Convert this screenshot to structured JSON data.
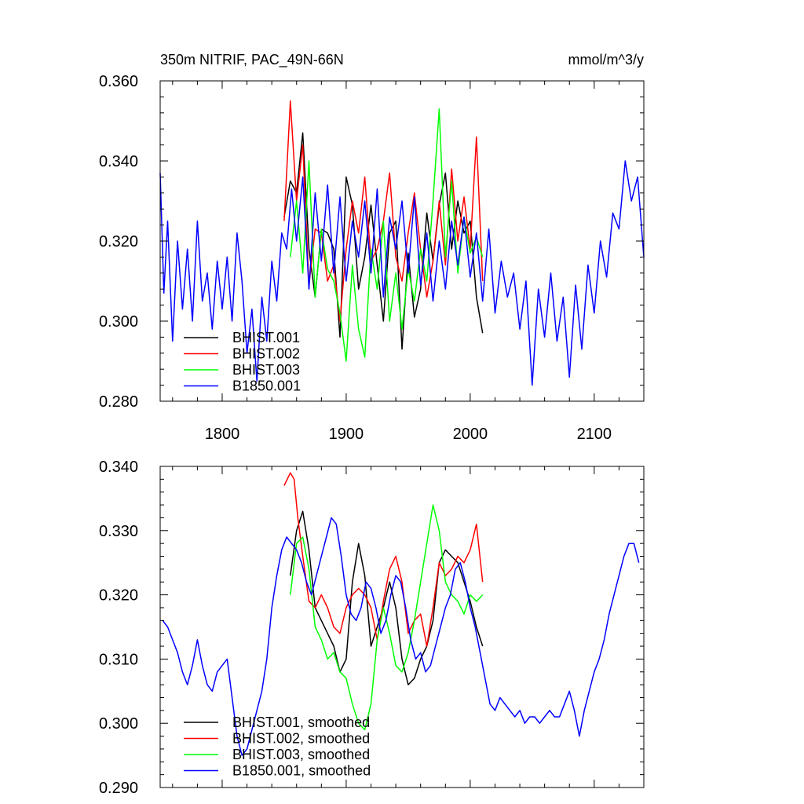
{
  "chart_data": [
    {
      "type": "line",
      "title_left": "350m NITRIF, PAC_49N-66N",
      "title_right": "mmol/m^3/y",
      "xlim": [
        1750,
        2140
      ],
      "ylim": [
        0.28,
        0.36
      ],
      "x_ticks": [
        1800,
        1900,
        2000,
        2100
      ],
      "x_tick_labels": [
        "1800",
        "1900",
        "2000",
        "2100"
      ],
      "y_ticks": [
        0.28,
        0.3,
        0.32,
        0.34,
        0.36
      ],
      "y_tick_labels": [
        "0.280",
        "0.300",
        "0.320",
        "0.340",
        "0.360"
      ],
      "legend_position": "bottom-left",
      "series": [
        {
          "name": "BHIST.001",
          "color": "#000000",
          "x": [
            1850,
            1855,
            1860,
            1865,
            1870,
            1875,
            1880,
            1885,
            1890,
            1895,
            1900,
            1905,
            1910,
            1915,
            1920,
            1925,
            1930,
            1935,
            1940,
            1945,
            1950,
            1955,
            1960,
            1965,
            1970,
            1975,
            1980,
            1985,
            1990,
            1995,
            2000,
            2005,
            2010
          ],
          "y": [
            0.326,
            0.335,
            0.332,
            0.347,
            0.318,
            0.306,
            0.323,
            0.322,
            0.318,
            0.296,
            0.336,
            0.329,
            0.308,
            0.316,
            0.329,
            0.314,
            0.3,
            0.322,
            0.325,
            0.293,
            0.317,
            0.301,
            0.308,
            0.327,
            0.315,
            0.329,
            0.337,
            0.318,
            0.33,
            0.322,
            0.325,
            0.306,
            0.297
          ]
        },
        {
          "name": "BHIST.002",
          "color": "#ff0000",
          "x": [
            1850,
            1855,
            1860,
            1865,
            1870,
            1875,
            1880,
            1885,
            1890,
            1895,
            1900,
            1905,
            1910,
            1915,
            1920,
            1925,
            1930,
            1935,
            1940,
            1945,
            1950,
            1955,
            1960,
            1965,
            1970,
            1975,
            1980,
            1985,
            1990,
            1995,
            2000,
            2005,
            2010
          ],
          "y": [
            0.325,
            0.355,
            0.33,
            0.344,
            0.309,
            0.323,
            0.322,
            0.31,
            0.314,
            0.3,
            0.318,
            0.33,
            0.322,
            0.336,
            0.315,
            0.318,
            0.325,
            0.337,
            0.316,
            0.31,
            0.322,
            0.332,
            0.318,
            0.306,
            0.315,
            0.33,
            0.314,
            0.338,
            0.32,
            0.331,
            0.318,
            0.346,
            0.31
          ]
        },
        {
          "name": "BHIST.003",
          "color": "#00ff00",
          "x": [
            1855,
            1860,
            1865,
            1870,
            1875,
            1880,
            1885,
            1890,
            1895,
            1900,
            1905,
            1910,
            1915,
            1920,
            1925,
            1930,
            1935,
            1940,
            1945,
            1950,
            1955,
            1960,
            1965,
            1970,
            1975,
            1980,
            1985,
            1990,
            1995,
            2000,
            2005,
            2010
          ],
          "y": [
            0.316,
            0.33,
            0.312,
            0.34,
            0.306,
            0.323,
            0.313,
            0.31,
            0.302,
            0.29,
            0.314,
            0.298,
            0.291,
            0.318,
            0.308,
            0.325,
            0.3,
            0.312,
            0.298,
            0.313,
            0.305,
            0.318,
            0.31,
            0.33,
            0.353,
            0.316,
            0.335,
            0.312,
            0.326,
            0.317,
            0.321,
            0.316
          ]
        },
        {
          "name": "B1850.001",
          "color": "#0000ff",
          "x": [
            1750,
            1753,
            1756,
            1760,
            1764,
            1768,
            1772,
            1776,
            1780,
            1784,
            1788,
            1792,
            1796,
            1800,
            1804,
            1808,
            1812,
            1816,
            1820,
            1824,
            1828,
            1832,
            1836,
            1840,
            1844,
            1848,
            1852,
            1856,
            1860,
            1865,
            1870,
            1875,
            1880,
            1885,
            1890,
            1895,
            1900,
            1905,
            1910,
            1915,
            1920,
            1925,
            1930,
            1935,
            1940,
            1945,
            1950,
            1955,
            1960,
            1965,
            1970,
            1975,
            1980,
            1985,
            1990,
            1995,
            2000,
            2005,
            2010,
            2015,
            2020,
            2025,
            2030,
            2035,
            2040,
            2045,
            2050,
            2055,
            2060,
            2065,
            2070,
            2075,
            2080,
            2085,
            2090,
            2095,
            2100,
            2105,
            2110,
            2115,
            2120,
            2125,
            2130,
            2135,
            2140
          ],
          "y": [
            0.337,
            0.307,
            0.325,
            0.295,
            0.32,
            0.303,
            0.318,
            0.3,
            0.325,
            0.305,
            0.312,
            0.298,
            0.315,
            0.303,
            0.316,
            0.3,
            0.322,
            0.31,
            0.292,
            0.303,
            0.285,
            0.306,
            0.295,
            0.315,
            0.305,
            0.322,
            0.318,
            0.333,
            0.32,
            0.336,
            0.308,
            0.332,
            0.315,
            0.334,
            0.312,
            0.331,
            0.31,
            0.325,
            0.316,
            0.33,
            0.312,
            0.333,
            0.306,
            0.326,
            0.318,
            0.33,
            0.312,
            0.331,
            0.309,
            0.322,
            0.305,
            0.32,
            0.308,
            0.325,
            0.314,
            0.326,
            0.311,
            0.322,
            0.305,
            0.323,
            0.302,
            0.315,
            0.306,
            0.312,
            0.298,
            0.31,
            0.284,
            0.308,
            0.296,
            0.312,
            0.295,
            0.306,
            0.286,
            0.309,
            0.293,
            0.314,
            0.302,
            0.32,
            0.311,
            0.327,
            0.323,
            0.34,
            0.33,
            0.336,
            0.316
          ]
        }
      ]
    },
    {
      "type": "line",
      "xlim": [
        1750,
        2140
      ],
      "ylim": [
        0.29,
        0.34
      ],
      "x_ticks": [
        1800,
        1900,
        2000,
        2100
      ],
      "y_ticks": [
        0.29,
        0.3,
        0.31,
        0.32,
        0.33,
        0.34
      ],
      "y_tick_labels": [
        "0.290",
        "0.300",
        "0.310",
        "0.320",
        "0.330",
        "0.340"
      ],
      "legend_position": "bottom-left",
      "series": [
        {
          "name": "BHIST.001, smoothed",
          "color": "#000000",
          "x": [
            1855,
            1860,
            1865,
            1870,
            1875,
            1880,
            1885,
            1890,
            1895,
            1900,
            1905,
            1910,
            1915,
            1920,
            1925,
            1930,
            1935,
            1940,
            1945,
            1950,
            1955,
            1960,
            1965,
            1970,
            1975,
            1980,
            1985,
            1990,
            1995,
            2000,
            2005,
            2010
          ],
          "y": [
            0.323,
            0.33,
            0.333,
            0.327,
            0.318,
            0.316,
            0.314,
            0.312,
            0.308,
            0.31,
            0.322,
            0.328,
            0.323,
            0.312,
            0.315,
            0.318,
            0.322,
            0.318,
            0.31,
            0.306,
            0.307,
            0.31,
            0.312,
            0.316,
            0.325,
            0.327,
            0.326,
            0.325,
            0.322,
            0.319,
            0.315,
            0.312
          ]
        },
        {
          "name": "BHIST.002, smoothed",
          "color": "#ff0000",
          "x": [
            1850,
            1855,
            1858,
            1861,
            1865,
            1870,
            1875,
            1880,
            1885,
            1890,
            1895,
            1900,
            1905,
            1910,
            1915,
            1920,
            1925,
            1930,
            1935,
            1940,
            1945,
            1950,
            1955,
            1960,
            1965,
            1970,
            1975,
            1980,
            1985,
            1990,
            1995,
            2000,
            2005,
            2010
          ],
          "y": [
            0.337,
            0.339,
            0.338,
            0.332,
            0.326,
            0.319,
            0.318,
            0.32,
            0.318,
            0.315,
            0.314,
            0.318,
            0.32,
            0.321,
            0.32,
            0.318,
            0.313,
            0.319,
            0.324,
            0.326,
            0.322,
            0.314,
            0.316,
            0.317,
            0.312,
            0.318,
            0.325,
            0.323,
            0.324,
            0.326,
            0.325,
            0.327,
            0.331,
            0.322
          ]
        },
        {
          "name": "BHIST.003, smoothed",
          "color": "#00ff00",
          "x": [
            1855,
            1860,
            1865,
            1870,
            1875,
            1880,
            1885,
            1890,
            1895,
            1900,
            1905,
            1910,
            1915,
            1920,
            1925,
            1930,
            1935,
            1940,
            1945,
            1950,
            1955,
            1960,
            1965,
            1970,
            1975,
            1980,
            1985,
            1990,
            1995,
            2000,
            2005,
            2010
          ],
          "y": [
            0.32,
            0.328,
            0.329,
            0.324,
            0.315,
            0.313,
            0.31,
            0.311,
            0.308,
            0.307,
            0.303,
            0.3,
            0.299,
            0.303,
            0.313,
            0.318,
            0.314,
            0.309,
            0.308,
            0.311,
            0.316,
            0.322,
            0.328,
            0.334,
            0.33,
            0.322,
            0.32,
            0.319,
            0.317,
            0.32,
            0.319,
            0.32
          ]
        },
        {
          "name": "B1850.001, smoothed",
          "color": "#0000ff",
          "x": [
            1752,
            1756,
            1760,
            1764,
            1768,
            1772,
            1776,
            1780,
            1784,
            1788,
            1792,
            1796,
            1800,
            1804,
            1808,
            1812,
            1816,
            1820,
            1824,
            1828,
            1832,
            1836,
            1840,
            1844,
            1848,
            1852,
            1856,
            1860,
            1864,
            1868,
            1872,
            1876,
            1880,
            1884,
            1888,
            1892,
            1896,
            1900,
            1904,
            1908,
            1912,
            1916,
            1920,
            1924,
            1928,
            1932,
            1936,
            1940,
            1944,
            1948,
            1952,
            1956,
            1960,
            1964,
            1968,
            1972,
            1976,
            1980,
            1984,
            1988,
            1992,
            1996,
            2000,
            2004,
            2008,
            2012,
            2016,
            2020,
            2024,
            2028,
            2032,
            2036,
            2040,
            2044,
            2048,
            2052,
            2056,
            2060,
            2064,
            2068,
            2072,
            2076,
            2080,
            2084,
            2088,
            2092,
            2096,
            2100,
            2104,
            2108,
            2112,
            2116,
            2120,
            2124,
            2128,
            2132,
            2136
          ],
          "y": [
            0.316,
            0.315,
            0.313,
            0.311,
            0.308,
            0.306,
            0.309,
            0.313,
            0.309,
            0.306,
            0.305,
            0.308,
            0.309,
            0.31,
            0.304,
            0.298,
            0.295,
            0.296,
            0.299,
            0.302,
            0.305,
            0.31,
            0.318,
            0.323,
            0.327,
            0.329,
            0.328,
            0.327,
            0.325,
            0.322,
            0.32,
            0.323,
            0.326,
            0.329,
            0.332,
            0.331,
            0.326,
            0.32,
            0.317,
            0.316,
            0.318,
            0.322,
            0.321,
            0.318,
            0.314,
            0.316,
            0.32,
            0.323,
            0.322,
            0.318,
            0.313,
            0.31,
            0.311,
            0.308,
            0.309,
            0.312,
            0.315,
            0.318,
            0.32,
            0.324,
            0.325,
            0.322,
            0.318,
            0.315,
            0.311,
            0.307,
            0.303,
            0.302,
            0.304,
            0.303,
            0.302,
            0.301,
            0.302,
            0.3,
            0.301,
            0.301,
            0.3,
            0.301,
            0.302,
            0.301,
            0.301,
            0.303,
            0.305,
            0.302,
            0.298,
            0.302,
            0.305,
            0.308,
            0.31,
            0.313,
            0.317,
            0.32,
            0.323,
            0.326,
            0.328,
            0.328,
            0.325
          ]
        }
      ]
    }
  ]
}
